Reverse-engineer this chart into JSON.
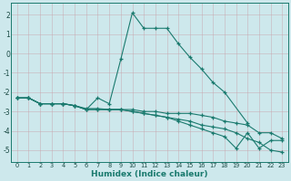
{
  "xlabel": "Humidex (Indice chaleur)",
  "bg_color": "#cde8ec",
  "line_color": "#1a7a6e",
  "grid_color": "#b8d4d8",
  "xlim": [
    -0.5,
    23.5
  ],
  "ylim": [
    -5.6,
    2.6
  ],
  "yticks": [
    -5,
    -4,
    -3,
    -2,
    -1,
    0,
    1,
    2
  ],
  "xticks": [
    0,
    1,
    2,
    3,
    4,
    5,
    6,
    7,
    8,
    9,
    10,
    11,
    12,
    13,
    14,
    15,
    16,
    17,
    18,
    19,
    20,
    21,
    22,
    23
  ],
  "curve1_x": [
    0,
    1,
    2,
    3,
    4,
    5,
    6,
    7,
    8,
    9,
    10,
    11,
    12,
    13,
    14,
    15,
    16,
    17,
    18,
    20
  ],
  "curve1_y": [
    -2.3,
    -2.3,
    -2.6,
    -2.6,
    -2.6,
    -2.7,
    -2.9,
    -2.3,
    -2.6,
    -0.3,
    2.1,
    1.3,
    1.3,
    1.3,
    0.5,
    -0.2,
    -0.8,
    -1.5,
    -2.0,
    -3.6
  ],
  "curve2_x": [
    0,
    1,
    2,
    3,
    4,
    5,
    6,
    7,
    8,
    9,
    10,
    11,
    12,
    13,
    14,
    15,
    16,
    17,
    18,
    19,
    20,
    21,
    22,
    23
  ],
  "curve2_y": [
    -2.3,
    -2.3,
    -2.6,
    -2.6,
    -2.6,
    -2.7,
    -2.85,
    -2.85,
    -2.9,
    -2.9,
    -2.9,
    -3.0,
    -3.0,
    -3.1,
    -3.1,
    -3.1,
    -3.2,
    -3.3,
    -3.5,
    -3.6,
    -3.7,
    -4.1,
    -4.1,
    -4.4
  ],
  "curve3_x": [
    0,
    1,
    2,
    3,
    4,
    5,
    6,
    7,
    8,
    9,
    10,
    11,
    12,
    13,
    14,
    15,
    16,
    17,
    18,
    19,
    20,
    21,
    22,
    23
  ],
  "curve3_y": [
    -2.3,
    -2.3,
    -2.6,
    -2.6,
    -2.6,
    -2.7,
    -2.9,
    -2.9,
    -2.9,
    -2.9,
    -3.0,
    -3.1,
    -3.2,
    -3.3,
    -3.4,
    -3.5,
    -3.7,
    -3.8,
    -3.9,
    -4.1,
    -4.4,
    -4.6,
    -5.0,
    -5.1
  ],
  "curve4_x": [
    0,
    1,
    2,
    3,
    4,
    5,
    6,
    7,
    8,
    9,
    10,
    11,
    12,
    13,
    14,
    15,
    16,
    17,
    18,
    19,
    20,
    21,
    22,
    23
  ],
  "curve4_y": [
    -2.3,
    -2.3,
    -2.6,
    -2.6,
    -2.6,
    -2.7,
    -2.9,
    -2.9,
    -2.9,
    -2.9,
    -3.0,
    -3.1,
    -3.2,
    -3.3,
    -3.5,
    -3.7,
    -3.9,
    -4.1,
    -4.3,
    -4.9,
    -4.1,
    -4.9,
    -4.5,
    -4.5
  ]
}
